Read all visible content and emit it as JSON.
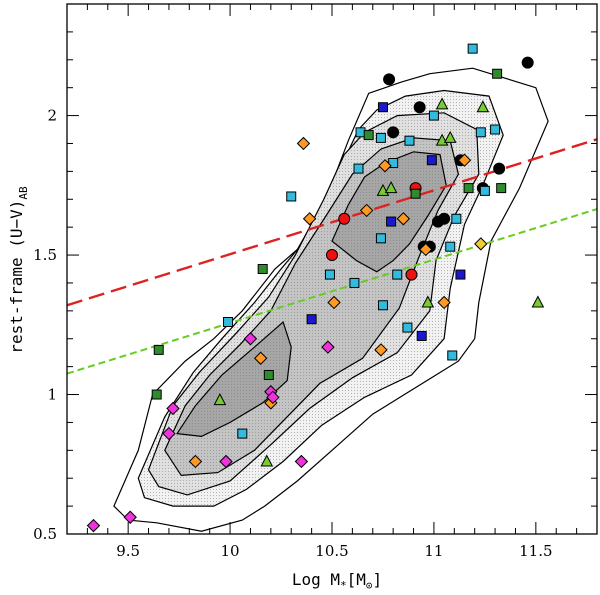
{
  "chart_data": {
    "type": "scatter",
    "title": "",
    "xlabel": "Log M*[M⊙]",
    "xlabel_parts": {
      "prefix": "Log M",
      "sub": "*",
      "bracket_open": "[M",
      "sun": "⊙",
      "bracket_close": "]"
    },
    "ylabel": "rest-frame (U-V)AB",
    "ylabel_parts": {
      "main": "rest-frame (U−V)",
      "sub": "AB"
    },
    "xlim": [
      9.2,
      11.8
    ],
    "ylim": [
      0.5,
      2.4
    ],
    "xticks": [
      9.5,
      10,
      10.5,
      11,
      11.5
    ],
    "xtick_labels": [
      "9.5",
      "10",
      "10.5",
      "11",
      "11.5"
    ],
    "yticks": [
      0.5,
      1,
      1.5,
      2
    ],
    "ytick_labels": [
      "0.5",
      "1",
      "1.5",
      "2"
    ],
    "grid": false,
    "lines": [
      {
        "name": "red-dashed-line",
        "color": "#dd2222",
        "x": [
          9.2,
          11.8
        ],
        "y": [
          1.32,
          1.915
        ]
      },
      {
        "name": "green-dashed-line",
        "color": "#66cc22",
        "x": [
          9.2,
          11.8
        ],
        "y": [
          1.075,
          1.665
        ]
      }
    ],
    "contours": [
      {
        "level": 1,
        "fill": "#ffffff",
        "points": [
          [
            9.43,
            0.6
          ],
          [
            9.55,
            0.8
          ],
          [
            9.62,
            1.0
          ],
          [
            9.78,
            1.12
          ],
          [
            9.92,
            1.2
          ],
          [
            10.06,
            1.3
          ],
          [
            10.22,
            1.45
          ],
          [
            10.33,
            1.52
          ],
          [
            10.47,
            1.7
          ],
          [
            10.58,
            1.91
          ],
          [
            10.68,
            2.08
          ],
          [
            10.84,
            2.12
          ],
          [
            10.98,
            2.15
          ],
          [
            11.19,
            2.17
          ],
          [
            11.5,
            2.1
          ],
          [
            11.56,
            1.98
          ],
          [
            11.42,
            1.74
          ],
          [
            11.28,
            1.55
          ],
          [
            11.22,
            1.33
          ],
          [
            11.2,
            1.2
          ],
          [
            11.12,
            1.12
          ],
          [
            10.9,
            1.02
          ],
          [
            10.7,
            0.93
          ],
          [
            10.5,
            0.8
          ],
          [
            10.33,
            0.69
          ],
          [
            10.17,
            0.6
          ],
          [
            10.06,
            0.55
          ],
          [
            9.86,
            0.51
          ],
          [
            9.64,
            0.54
          ],
          [
            9.5,
            0.55
          ]
        ]
      },
      {
        "level": 2,
        "fill": "#f2f2f2",
        "points": [
          [
            9.55,
            0.7
          ],
          [
            9.68,
            0.92
          ],
          [
            9.82,
            1.08
          ],
          [
            9.96,
            1.2
          ],
          [
            10.12,
            1.33
          ],
          [
            10.25,
            1.45
          ],
          [
            10.4,
            1.58
          ],
          [
            10.52,
            1.78
          ],
          [
            10.63,
            1.95
          ],
          [
            10.72,
            2.02
          ],
          [
            10.86,
            2.07
          ],
          [
            11.05,
            2.09
          ],
          [
            11.27,
            2.07
          ],
          [
            11.34,
            1.93
          ],
          [
            11.24,
            1.75
          ],
          [
            11.15,
            1.61
          ],
          [
            11.08,
            1.38
          ],
          [
            11.05,
            1.2
          ],
          [
            10.89,
            1.07
          ],
          [
            10.66,
            0.99
          ],
          [
            10.45,
            0.89
          ],
          [
            10.26,
            0.76
          ],
          [
            10.08,
            0.66
          ],
          [
            9.92,
            0.6
          ],
          [
            9.72,
            0.6
          ],
          [
            9.58,
            0.63
          ]
        ]
      },
      {
        "level": 3,
        "fill": "#e0e0e0",
        "points": [
          [
            9.6,
            0.73
          ],
          [
            9.72,
            0.96
          ],
          [
            9.85,
            1.08
          ],
          [
            10.03,
            1.22
          ],
          [
            10.19,
            1.35
          ],
          [
            10.32,
            1.5
          ],
          [
            10.46,
            1.7
          ],
          [
            10.56,
            1.86
          ],
          [
            10.66,
            1.94
          ],
          [
            10.82,
            2.0
          ],
          [
            11.05,
            2.01
          ],
          [
            11.21,
            1.95
          ],
          [
            11.22,
            1.79
          ],
          [
            11.1,
            1.64
          ],
          [
            11.01,
            1.48
          ],
          [
            10.98,
            1.3
          ],
          [
            10.82,
            1.15
          ],
          [
            10.6,
            1.06
          ],
          [
            10.39,
            0.95
          ],
          [
            10.2,
            0.82
          ],
          [
            10.0,
            0.69
          ],
          [
            9.79,
            0.64
          ],
          [
            9.65,
            0.67
          ]
        ]
      },
      {
        "level": 4,
        "fill": "#c4c4c4",
        "points": [
          [
            9.68,
            0.8
          ],
          [
            9.78,
            0.96
          ],
          [
            9.9,
            1.07
          ],
          [
            10.05,
            1.18
          ],
          [
            10.2,
            1.3
          ],
          [
            10.32,
            1.47
          ],
          [
            10.47,
            1.64
          ],
          [
            10.6,
            1.79
          ],
          [
            10.74,
            1.88
          ],
          [
            10.9,
            1.92
          ],
          [
            11.08,
            1.91
          ],
          [
            11.12,
            1.79
          ],
          [
            11.02,
            1.66
          ],
          [
            10.93,
            1.5
          ],
          [
            10.83,
            1.31
          ],
          [
            10.65,
            1.13
          ],
          [
            10.44,
            1.04
          ],
          [
            10.28,
            0.92
          ],
          [
            10.12,
            0.8
          ],
          [
            9.94,
            0.72
          ],
          [
            9.76,
            0.71
          ]
        ]
      },
      {
        "level": 5,
        "fill": "#a6a6a6",
        "points": [
          [
            9.74,
            0.86
          ],
          [
            9.83,
            0.96
          ],
          [
            9.96,
            1.07
          ],
          [
            10.12,
            1.17
          ],
          [
            10.26,
            1.26
          ],
          [
            10.3,
            1.17
          ],
          [
            10.28,
            1.05
          ],
          [
            10.16,
            0.97
          ],
          [
            10.0,
            0.9
          ],
          [
            9.86,
            0.85
          ]
        ]
      },
      {
        "level": 5,
        "fill": "#a6a6a6",
        "points": [
          [
            10.5,
            1.55
          ],
          [
            10.58,
            1.68
          ],
          [
            10.66,
            1.78
          ],
          [
            10.76,
            1.83
          ],
          [
            10.9,
            1.87
          ],
          [
            11.03,
            1.86
          ],
          [
            11.06,
            1.75
          ],
          [
            10.97,
            1.64
          ],
          [
            10.88,
            1.54
          ],
          [
            10.8,
            1.48
          ],
          [
            10.72,
            1.44
          ],
          [
            10.62,
            1.48
          ]
        ]
      }
    ],
    "series": [
      {
        "name": "black-circles",
        "marker": "circle",
        "color": "#000000",
        "points": [
          [
            10.78,
            2.13
          ],
          [
            11.46,
            2.19
          ],
          [
            10.93,
            2.03
          ],
          [
            10.8,
            1.94
          ],
          [
            11.13,
            1.84
          ],
          [
            11.32,
            1.81
          ],
          [
            11.24,
            1.74
          ],
          [
            10.98,
            1.53
          ],
          [
            11.05,
            1.63
          ],
          [
            10.95,
            1.53
          ],
          [
            11.02,
            1.62
          ]
        ]
      },
      {
        "name": "red-circles",
        "marker": "circle",
        "color": "#ee1111",
        "points": [
          [
            10.56,
            1.63
          ],
          [
            10.5,
            1.5
          ],
          [
            10.91,
            1.74
          ],
          [
            10.89,
            1.43
          ]
        ]
      },
      {
        "name": "blue-squares",
        "marker": "square",
        "color": "#1a1acc",
        "points": [
          [
            10.75,
            2.03
          ],
          [
            10.99,
            1.84
          ],
          [
            10.79,
            1.62
          ],
          [
            10.4,
            1.27
          ],
          [
            11.13,
            1.43
          ],
          [
            10.94,
            1.21
          ]
        ]
      },
      {
        "name": "cyan-squares",
        "marker": "square",
        "color": "#33bbdd",
        "points": [
          [
            11.19,
            2.24
          ],
          [
            11.0,
            2.0
          ],
          [
            10.64,
            1.94
          ],
          [
            10.74,
            1.92
          ],
          [
            10.88,
            1.91
          ],
          [
            11.23,
            1.94
          ],
          [
            11.3,
            1.95
          ],
          [
            10.63,
            1.81
          ],
          [
            10.8,
            1.83
          ],
          [
            11.25,
            1.73
          ],
          [
            11.08,
            1.53
          ],
          [
            11.11,
            1.63
          ],
          [
            10.74,
            1.56
          ],
          [
            10.82,
            1.43
          ],
          [
            10.61,
            1.4
          ],
          [
            10.49,
            1.43
          ],
          [
            10.75,
            1.32
          ],
          [
            10.87,
            1.24
          ],
          [
            11.09,
            1.14
          ],
          [
            9.99,
            1.26
          ],
          [
            10.06,
            0.86
          ],
          [
            10.3,
            1.71
          ]
        ]
      },
      {
        "name": "dark-green-squares",
        "marker": "square",
        "color": "#2e8b2e",
        "points": [
          [
            11.31,
            2.15
          ],
          [
            10.68,
            1.93
          ],
          [
            10.91,
            1.72
          ],
          [
            11.17,
            1.74
          ],
          [
            11.33,
            1.74
          ],
          [
            10.16,
            1.45
          ],
          [
            9.65,
            1.16
          ],
          [
            9.64,
            1.0
          ],
          [
            10.19,
            1.07
          ]
        ]
      },
      {
        "name": "light-green-triangles",
        "marker": "triangle",
        "color": "#77cc33",
        "points": [
          [
            11.04,
            2.04
          ],
          [
            11.24,
            2.03
          ],
          [
            10.75,
            1.73
          ],
          [
            10.79,
            1.74
          ],
          [
            11.04,
            1.91
          ],
          [
            11.08,
            1.92
          ],
          [
            11.51,
            1.33
          ],
          [
            10.97,
            1.33
          ],
          [
            9.95,
            0.98
          ],
          [
            10.18,
            0.76
          ]
        ]
      },
      {
        "name": "orange-diamonds",
        "marker": "diamond",
        "color": "#ff9922",
        "points": [
          [
            10.36,
            1.9
          ],
          [
            10.76,
            1.82
          ],
          [
            10.67,
            1.66
          ],
          [
            10.85,
            1.63
          ],
          [
            10.96,
            1.52
          ],
          [
            10.39,
            1.63
          ],
          [
            10.51,
            1.33
          ],
          [
            11.05,
            1.33
          ],
          [
            10.74,
            1.16
          ],
          [
            10.15,
            1.13
          ],
          [
            11.15,
            1.84
          ],
          [
            10.2,
            0.97
          ],
          [
            9.83,
            0.76
          ]
        ]
      },
      {
        "name": "yellow-diamonds",
        "marker": "diamond",
        "color": "#eecc33",
        "points": [
          [
            11.23,
            1.54
          ]
        ]
      },
      {
        "name": "magenta-diamonds",
        "marker": "diamond",
        "color": "#ee33dd",
        "points": [
          [
            10.1,
            1.2
          ],
          [
            10.48,
            1.17
          ],
          [
            9.72,
            0.95
          ],
          [
            9.7,
            0.86
          ],
          [
            10.2,
            1.01
          ],
          [
            10.21,
            0.99
          ],
          [
            9.98,
            0.76
          ],
          [
            10.35,
            0.76
          ],
          [
            9.33,
            0.53
          ],
          [
            9.51,
            0.56
          ]
        ]
      }
    ]
  }
}
